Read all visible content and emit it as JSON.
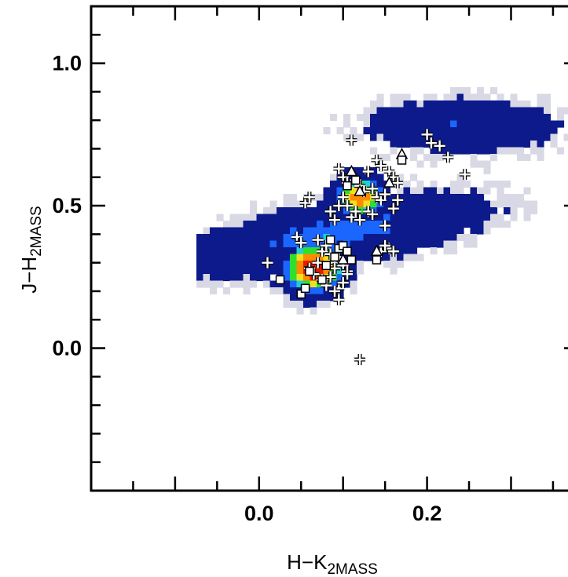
{
  "chart_data": {
    "type": "scatter",
    "title": "",
    "xlabel": "H−K",
    "xlabel_subscript": "2MASS",
    "ylabel": "J−H",
    "ylabel_subscript": "2MASS",
    "xlim": [
      -0.2,
      0.38
    ],
    "ylim": [
      -0.5,
      1.2
    ],
    "x_ticks": [
      0.0,
      0.2
    ],
    "x_tick_labels": [
      "0.0",
      "0.2"
    ],
    "y_ticks": [
      0.0,
      0.5,
      1.0
    ],
    "y_tick_labels": [
      "0.0",
      "0.5",
      "1.0"
    ],
    "grid": false,
    "legend": "none",
    "density_background": {
      "description_colors": [
        "#d9d9e6",
        "#0d1a8c",
        "#1a66ff",
        "#1fd1d1",
        "#2ee02e",
        "#f0e020",
        "#ff8c00",
        "#e61a00"
      ],
      "peaks": [
        {
          "x": 0.065,
          "y": 0.28,
          "level": 1.0
        },
        {
          "x": 0.12,
          "y": 0.53,
          "level": 0.85
        }
      ]
    },
    "series": [
      {
        "marker": "plus",
        "x": [
          0.11,
          0.2,
          0.205,
          0.215,
          0.225,
          0.245,
          0.14,
          0.145,
          0.13,
          0.155,
          0.16,
          0.165,
          0.095,
          0.1,
          0.105,
          0.115,
          0.12,
          0.125,
          0.135,
          0.14,
          0.145,
          0.15,
          0.16,
          0.165,
          0.055,
          0.06,
          0.085,
          0.09,
          0.095,
          0.1,
          0.105,
          0.11,
          0.115,
          0.12,
          0.13,
          0.135,
          0.15,
          0.155,
          0.16,
          0.045,
          0.05,
          0.07,
          0.075,
          0.08,
          0.085,
          0.09,
          0.095,
          0.1,
          0.105,
          0.145,
          0.15,
          0.01,
          0.06,
          0.065,
          0.07,
          0.075,
          0.08,
          0.085,
          0.09,
          0.095,
          0.1,
          0.105,
          0.09,
          0.095,
          0.12
        ],
        "y": [
          0.73,
          0.75,
          0.72,
          0.71,
          0.67,
          0.61,
          0.66,
          0.64,
          0.62,
          0.62,
          0.6,
          0.58,
          0.63,
          0.6,
          0.58,
          0.59,
          0.57,
          0.55,
          0.56,
          0.53,
          0.52,
          0.54,
          0.49,
          0.52,
          0.51,
          0.53,
          0.48,
          0.45,
          0.5,
          0.53,
          0.5,
          0.46,
          0.48,
          0.45,
          0.48,
          0.47,
          0.43,
          0.35,
          0.34,
          0.39,
          0.37,
          0.38,
          0.34,
          0.36,
          0.33,
          0.3,
          0.32,
          0.29,
          0.27,
          0.34,
          0.36,
          0.3,
          0.28,
          0.26,
          0.3,
          0.24,
          0.22,
          0.25,
          0.28,
          0.21,
          0.23,
          0.26,
          0.2,
          0.17,
          -0.04
        ]
      },
      {
        "marker": "triangle",
        "x": [
          0.11,
          0.12,
          0.155,
          0.17,
          0.1,
          0.14
        ],
        "y": [
          0.62,
          0.55,
          0.58,
          0.68,
          0.31,
          0.34
        ]
      },
      {
        "marker": "square",
        "x": [
          0.025,
          0.05,
          0.055,
          0.06,
          0.075,
          0.08,
          0.085,
          0.09,
          0.095,
          0.1,
          0.105,
          0.11,
          0.115,
          0.14,
          0.105,
          0.17
        ],
        "y": [
          0.24,
          0.19,
          0.21,
          0.27,
          0.24,
          0.29,
          0.38,
          0.32,
          0.35,
          0.36,
          0.34,
          0.31,
          0.59,
          0.31,
          0.57,
          0.66
        ]
      }
    ]
  }
}
